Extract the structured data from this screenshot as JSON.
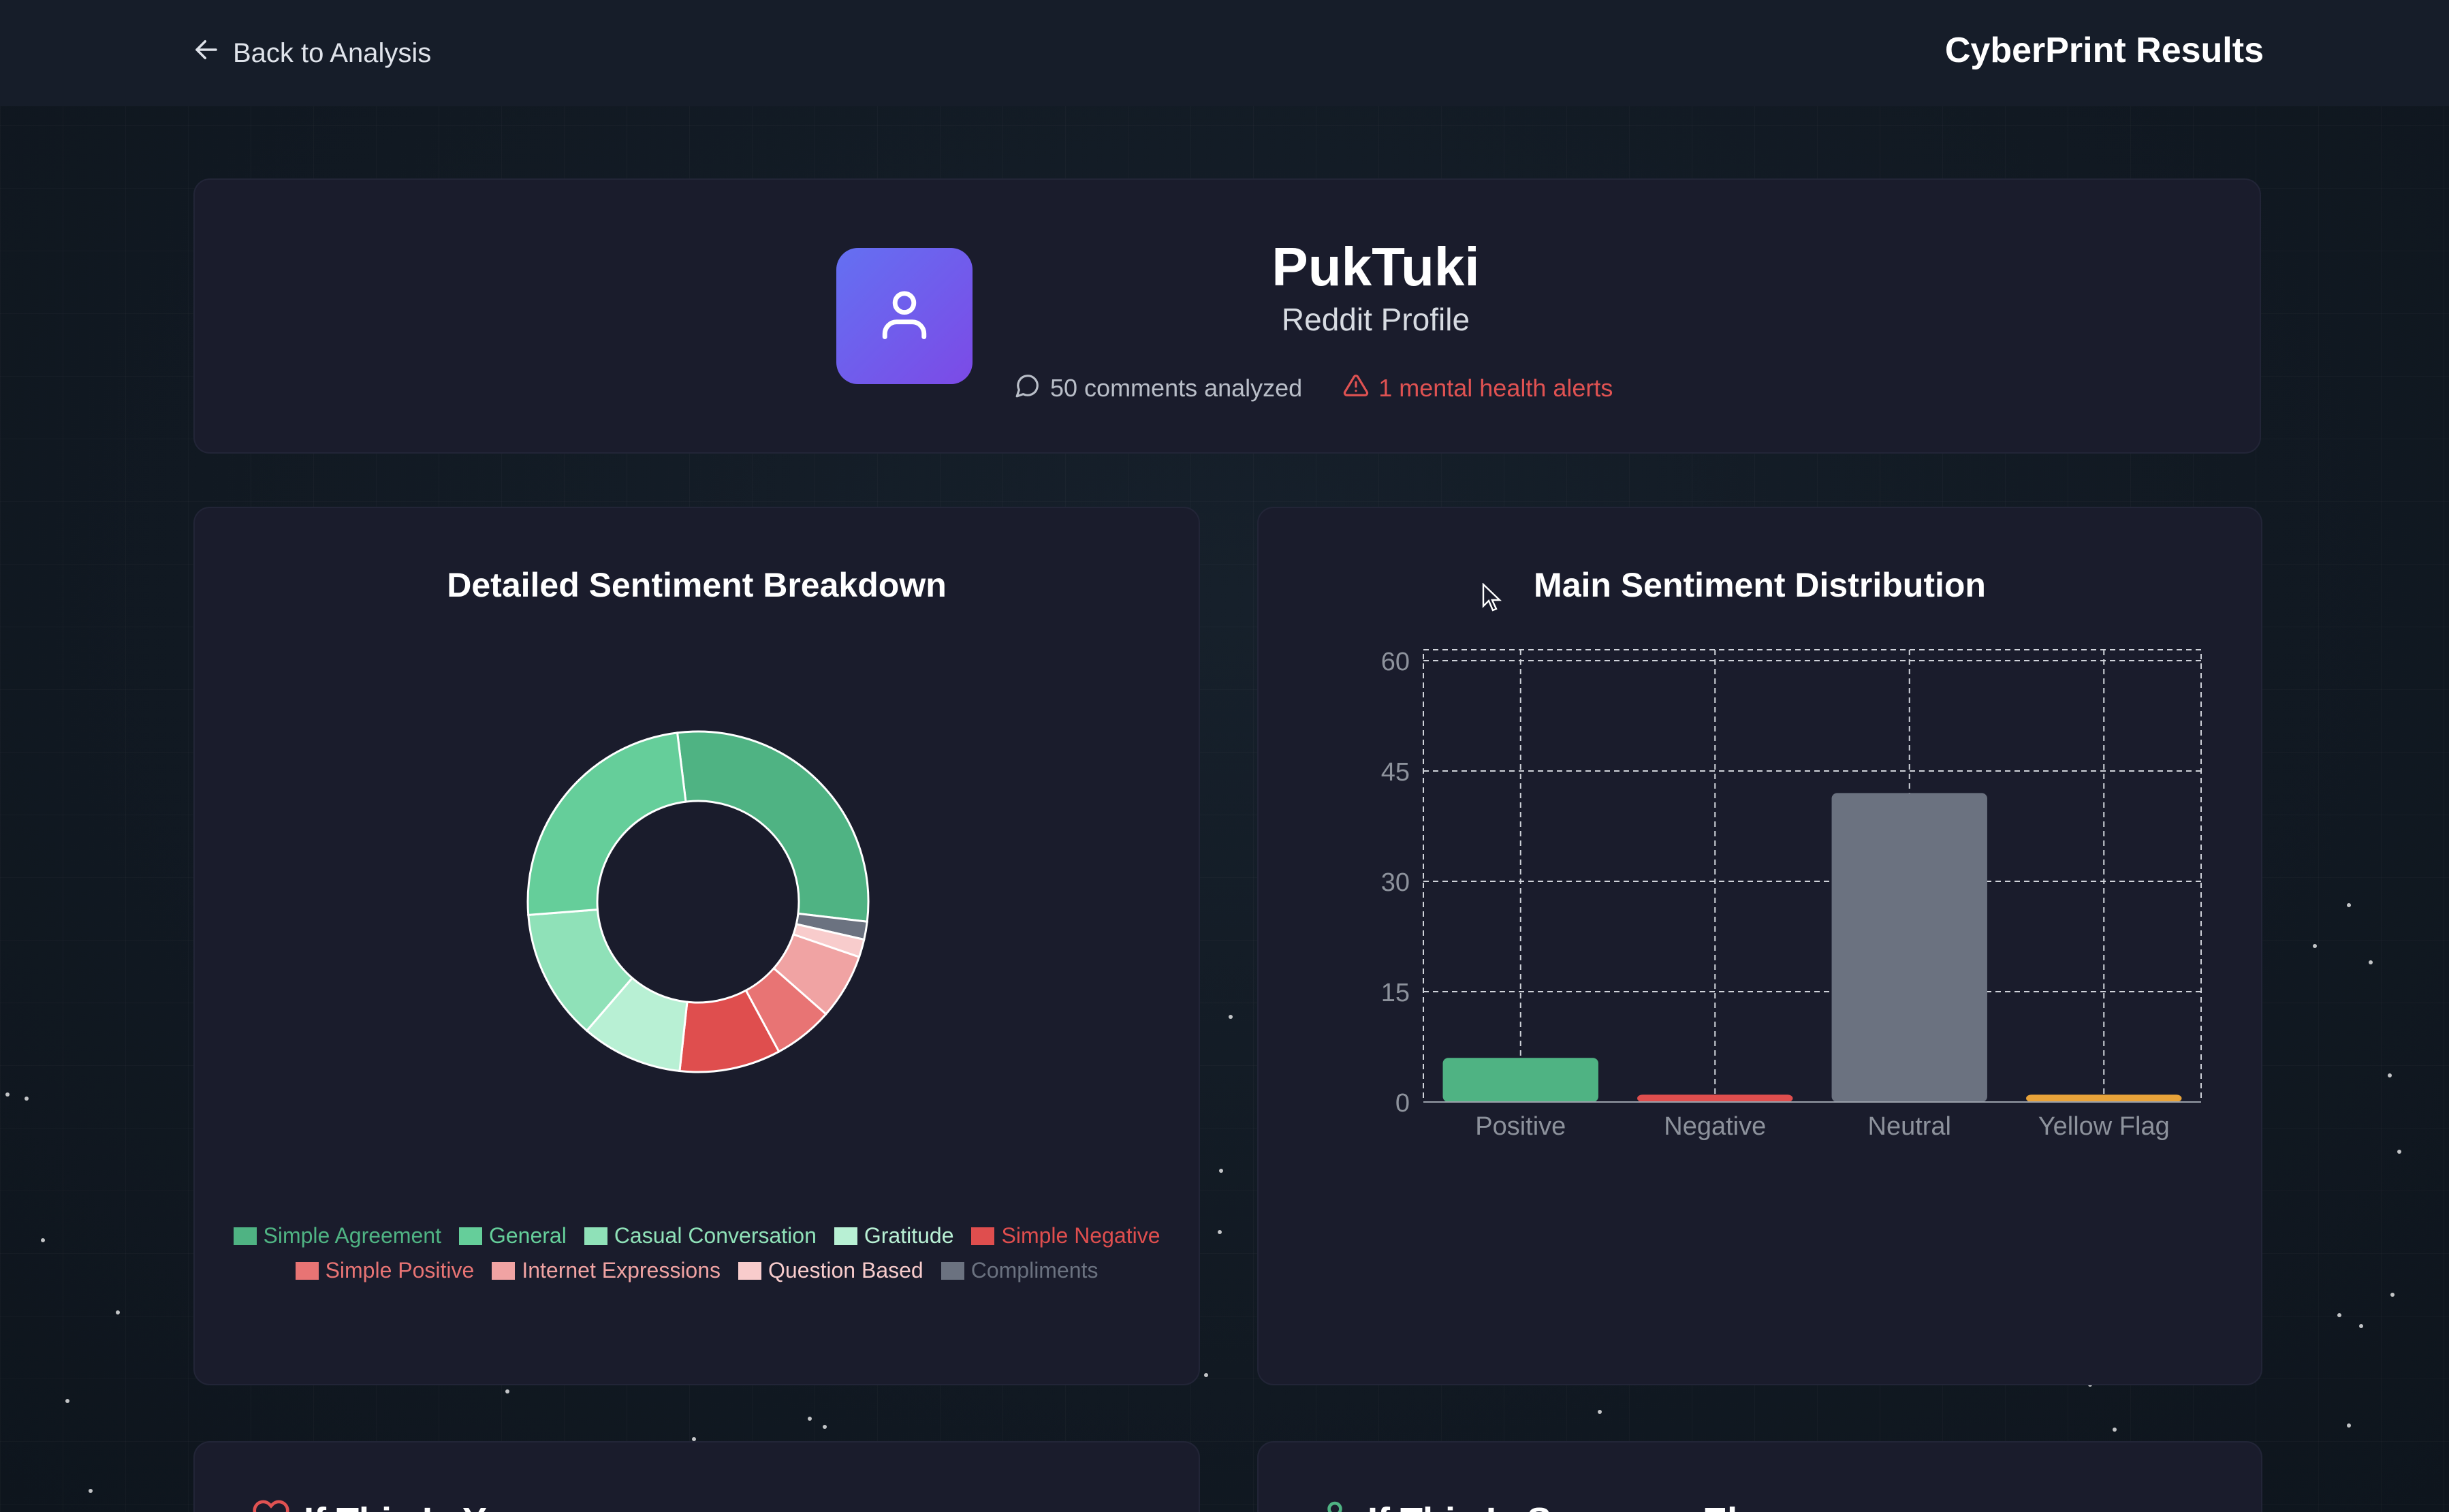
{
  "header": {
    "back_label": "Back to Analysis",
    "app_title": "CyberPrint Results"
  },
  "profile": {
    "username": "PukTuki",
    "platform": "Reddit Profile",
    "comments_analyzed": "50 comments analyzed",
    "alerts": "1 mental health alerts",
    "avatar_icon": "user-icon",
    "avatar_gradient": [
      "#6470f2",
      "#7c4ae6"
    ]
  },
  "detailed_chart": {
    "title": "Detailed Sentiment Breakdown",
    "legend": [
      {
        "label": "Simple Agreement",
        "color": "#4fb383"
      },
      {
        "label": "General",
        "color": "#65ce9a"
      },
      {
        "label": "Casual Conversation",
        "color": "#8fe1b8"
      },
      {
        "label": "Gratitude",
        "color": "#b8f0d4"
      },
      {
        "label": "Simple Negative",
        "color": "#df4e4e"
      },
      {
        "label": "Simple Positive",
        "color": "#e87474"
      },
      {
        "label": "Internet Expressions",
        "color": "#f0a3a3"
      },
      {
        "label": "Question Based",
        "color": "#f8cccc"
      },
      {
        "label": "Compliments",
        "color": "#6b7280"
      }
    ]
  },
  "main_chart": {
    "title": "Main Sentiment Distribution"
  },
  "chart_data": [
    {
      "type": "pie",
      "title": "Detailed Sentiment Breakdown",
      "categories": [
        "Simple Agreement",
        "Compliments",
        "Question Based",
        "Internet Expressions",
        "Simple Positive",
        "Simple Negative",
        "Gratitude",
        "Casual Conversation",
        "General"
      ],
      "values": [
        25.5,
        1.5,
        1.5,
        5.5,
        5.0,
        8.5,
        8.5,
        11.0,
        21.5
      ],
      "colors": [
        "#4fb383",
        "#6b7280",
        "#f8cccc",
        "#f0a3a3",
        "#e87474",
        "#df4e4e",
        "#b8f0d4",
        "#8fe1b8",
        "#65ce9a"
      ],
      "donut": true
    },
    {
      "type": "bar",
      "title": "Main Sentiment Distribution",
      "categories": [
        "Positive",
        "Negative",
        "Neutral",
        "Yellow Flag"
      ],
      "values": [
        6,
        1,
        42,
        1
      ],
      "colors": [
        "#4fb383",
        "#df4e4e",
        "#6b7280",
        "#e8a33a"
      ],
      "yticks": [
        0,
        15,
        30,
        45,
        60
      ],
      "ylim": [
        0,
        60
      ],
      "grid": true
    }
  ],
  "bottom_cards": {
    "left_title": "If This Is Y",
    "right_title": "If This Is Someone El"
  }
}
